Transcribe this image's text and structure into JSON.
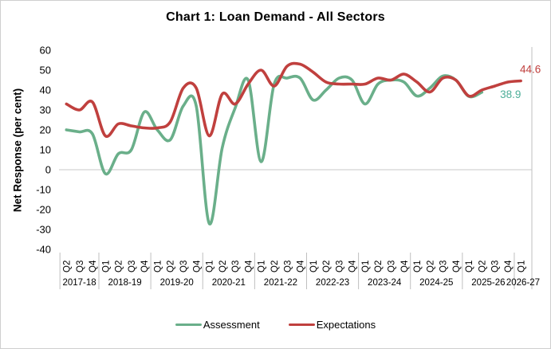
{
  "chart_data": {
    "type": "line",
    "title": "Chart 1: Loan Demand - All Sectors",
    "ylabel": "Net Response (per cent)",
    "ylim": [
      -40,
      60
    ],
    "yticks": [
      60,
      50,
      40,
      30,
      20,
      10,
      0,
      -10,
      -20,
      -30,
      -40
    ],
    "grid": "zero-line-only",
    "legend_position": "bottom",
    "year_groups": [
      {
        "label": "2017-18",
        "quarters": [
          "Q2",
          "Q3",
          "Q4"
        ]
      },
      {
        "label": "2018-19",
        "quarters": [
          "Q1",
          "Q2",
          "Q3",
          "Q4"
        ]
      },
      {
        "label": "2019-20",
        "quarters": [
          "Q1",
          "Q2",
          "Q3",
          "Q4"
        ]
      },
      {
        "label": "2020-21",
        "quarters": [
          "Q1",
          "Q2",
          "Q3",
          "Q4"
        ]
      },
      {
        "label": "2021-22",
        "quarters": [
          "Q1",
          "Q2",
          "Q3",
          "Q4"
        ]
      },
      {
        "label": "2022-23",
        "quarters": [
          "Q1",
          "Q2",
          "Q3",
          "Q4"
        ]
      },
      {
        "label": "2023-24",
        "quarters": [
          "Q1",
          "Q2",
          "Q3",
          "Q4"
        ]
      },
      {
        "label": "2024-25",
        "quarters": [
          "Q1",
          "Q2",
          "Q3",
          "Q4"
        ]
      },
      {
        "label": "2025-26",
        "quarters": [
          "Q1",
          "Q2",
          "Q3",
          "Q4"
        ]
      },
      {
        "label": "2026-27",
        "quarters": [
          "Q1"
        ]
      }
    ],
    "series": [
      {
        "name": "Assessment",
        "color": "#6AAF8A",
        "values": [
          20,
          19,
          18,
          -2,
          8,
          10,
          29,
          20,
          15,
          32,
          32,
          -27,
          11,
          31,
          45,
          4,
          43,
          46,
          46,
          35,
          40,
          46,
          45,
          33,
          43,
          45,
          44,
          37,
          41,
          47,
          45,
          36.8,
          38.9
        ]
      },
      {
        "name": "Expectations",
        "color": "#C0403E",
        "values": [
          33,
          30,
          34,
          17,
          23,
          22,
          21,
          21,
          24,
          41,
          41,
          17,
          38,
          33,
          43,
          50,
          42,
          52,
          53,
          49,
          44,
          43,
          43,
          43,
          46,
          45,
          48,
          44,
          39,
          46,
          45,
          37,
          40,
          42,
          44,
          44.6
        ]
      }
    ],
    "end_labels": [
      {
        "series": "Assessment",
        "text": "38.9",
        "color": "#4DAE98"
      },
      {
        "series": "Expectations",
        "text": "44.6",
        "color": "#C0403E"
      }
    ],
    "legend": [
      {
        "label": "Assessment"
      },
      {
        "label": "Expectations"
      }
    ]
  }
}
